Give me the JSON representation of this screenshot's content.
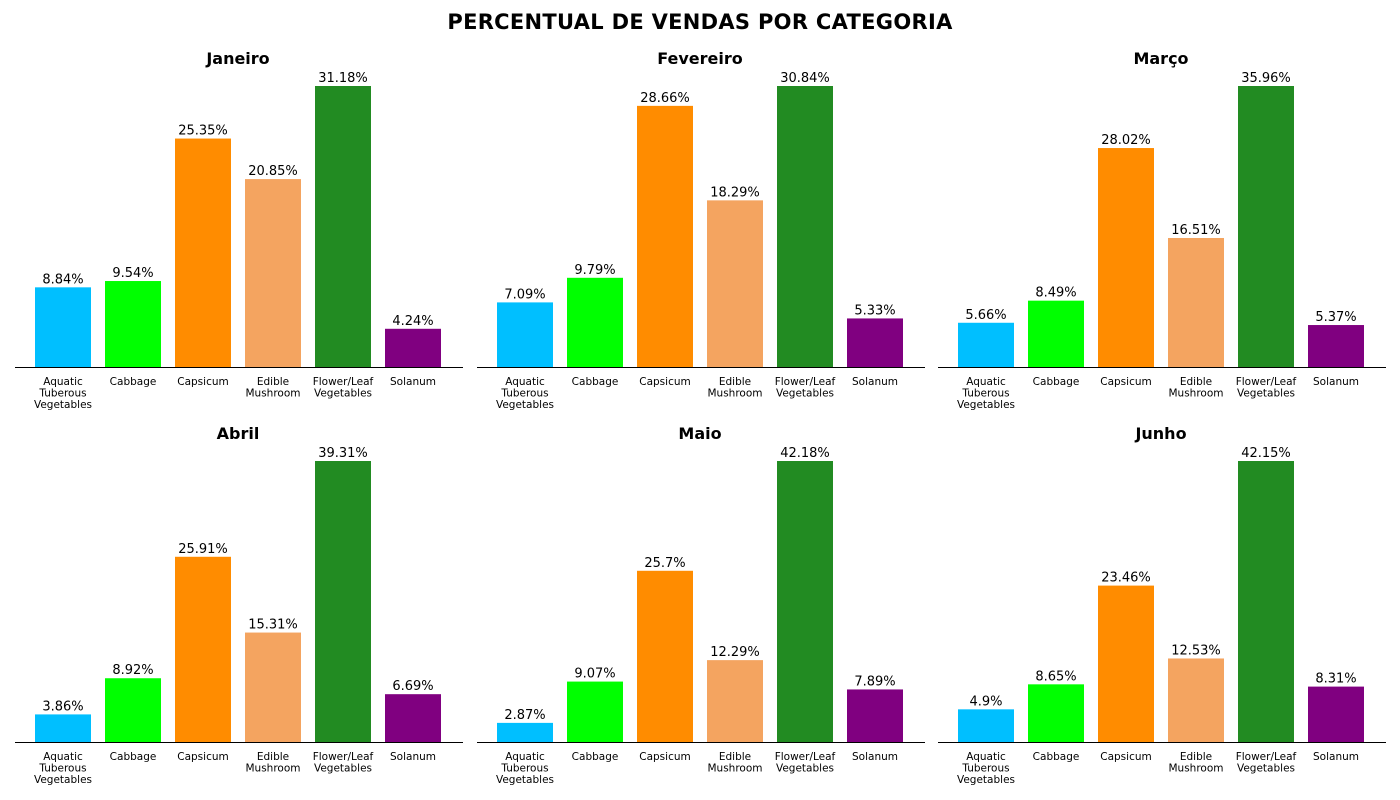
{
  "title": "PERCENTUAL DE VENDAS POR CATEGORIA",
  "chart_data": [
    {
      "type": "bar",
      "title": "Janeiro",
      "categories": [
        "Aquatic Tuberous Vegetables",
        "Cabbage",
        "Capsicum",
        "Edible Mushroom",
        "Flower/Leaf Vegetables",
        "Solanum"
      ],
      "values": [
        8.84,
        9.54,
        25.35,
        20.85,
        31.18,
        4.24
      ],
      "value_labels": [
        "8.84%",
        "9.54%",
        "25.35%",
        "20.85%",
        "31.18%",
        "4.24%"
      ]
    },
    {
      "type": "bar",
      "title": "Fevereiro",
      "categories": [
        "Aquatic Tuberous Vegetables",
        "Cabbage",
        "Capsicum",
        "Edible Mushroom",
        "Flower/Leaf Vegetables",
        "Solanum"
      ],
      "values": [
        7.09,
        9.79,
        28.66,
        18.29,
        30.84,
        5.33
      ],
      "value_labels": [
        "7.09%",
        "9.79%",
        "28.66%",
        "18.29%",
        "30.84%",
        "5.33%"
      ]
    },
    {
      "type": "bar",
      "title": "Março",
      "categories": [
        "Aquatic Tuberous Vegetables",
        "Cabbage",
        "Capsicum",
        "Edible Mushroom",
        "Flower/Leaf Vegetables",
        "Solanum"
      ],
      "values": [
        5.66,
        8.49,
        28.02,
        16.51,
        35.96,
        5.37
      ],
      "value_labels": [
        "5.66%",
        "8.49%",
        "28.02%",
        "16.51%",
        "35.96%",
        "5.37%"
      ]
    },
    {
      "type": "bar",
      "title": "Abril",
      "categories": [
        "Aquatic Tuberous Vegetables",
        "Cabbage",
        "Capsicum",
        "Edible Mushroom",
        "Flower/Leaf Vegetables",
        "Solanum"
      ],
      "values": [
        3.86,
        8.92,
        25.91,
        15.31,
        39.31,
        6.69
      ],
      "value_labels": [
        "3.86%",
        "8.92%",
        "25.91%",
        "15.31%",
        "39.31%",
        "6.69%"
      ]
    },
    {
      "type": "bar",
      "title": "Maio",
      "categories": [
        "Aquatic Tuberous Vegetables",
        "Cabbage",
        "Capsicum",
        "Edible Mushroom",
        "Flower/Leaf Vegetables",
        "Solanum"
      ],
      "values": [
        2.87,
        9.07,
        25.7,
        12.29,
        42.18,
        7.89
      ],
      "value_labels": [
        "2.87%",
        "9.07%",
        "25.7%",
        "12.29%",
        "42.18%",
        "7.89%"
      ]
    },
    {
      "type": "bar",
      "title": "Junho",
      "categories": [
        "Aquatic Tuberous Vegetables",
        "Cabbage",
        "Capsicum",
        "Edible Mushroom",
        "Flower/Leaf Vegetables",
        "Solanum"
      ],
      "values": [
        4.9,
        8.65,
        23.46,
        12.53,
        42.15,
        8.31
      ],
      "value_labels": [
        "4.9%",
        "8.65%",
        "23.46%",
        "12.53%",
        "42.15%",
        "8.31%"
      ]
    }
  ],
  "colors": [
    "#00bfff",
    "#00ff00",
    "#ff8c00",
    "#f4a460",
    "#228b22",
    "#800080"
  ],
  "tick_lines": [
    [
      "Aquatic",
      "Tuberous",
      "Vegetables"
    ],
    [
      "Cabbage"
    ],
    [
      "Capsicum"
    ],
    [
      "Edible",
      "Mushroom"
    ],
    [
      "Flower/Leaf",
      "Vegetables"
    ],
    [
      "Solanum"
    ]
  ]
}
